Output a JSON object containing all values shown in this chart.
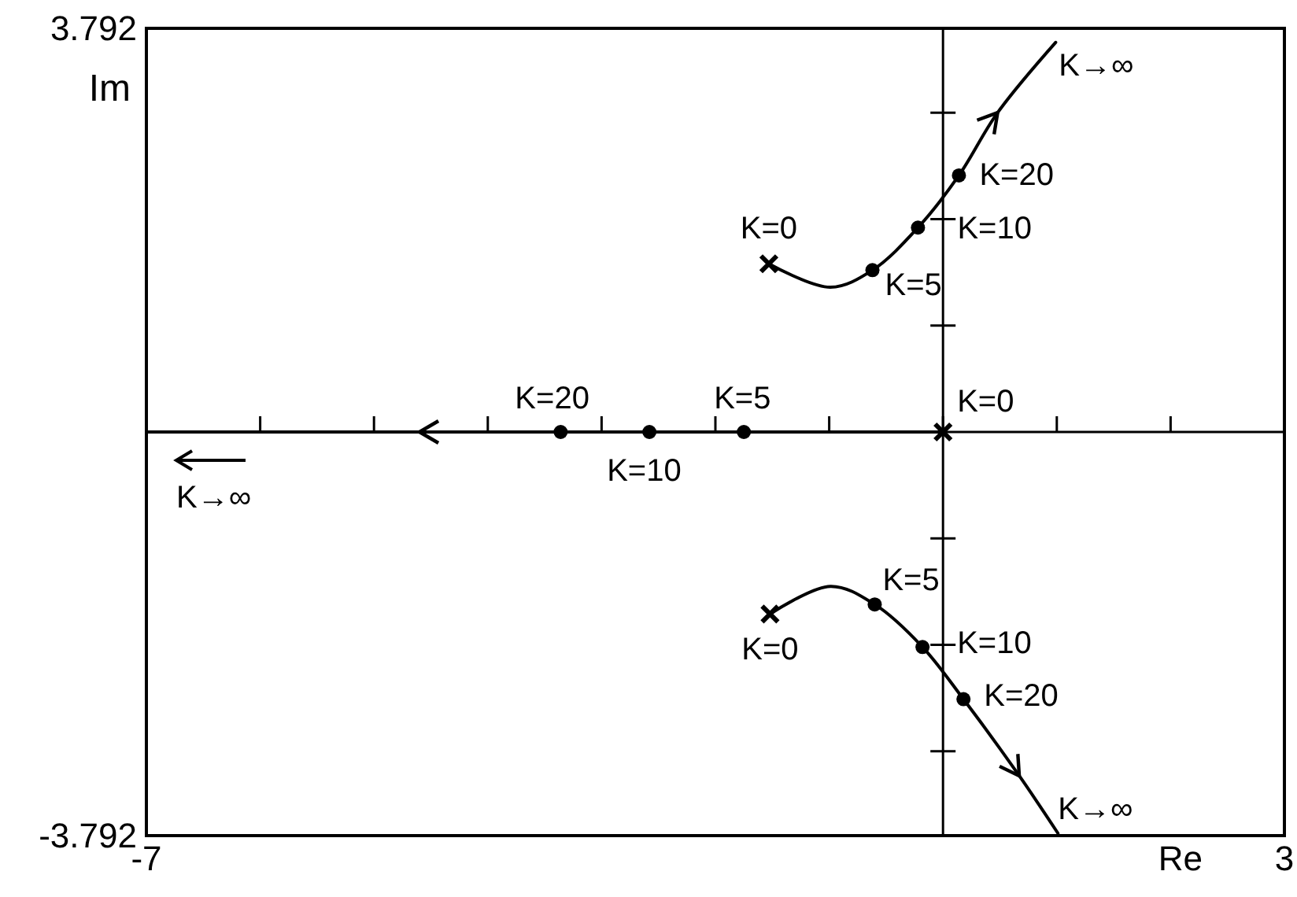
{
  "chart_data": {
    "type": "line",
    "xlabel": "Re",
    "ylabel": "Im",
    "xlim": [
      -7,
      3
    ],
    "ylim": [
      -3.792,
      3.792
    ],
    "xticks": [
      -7,
      {
        "value": -6,
        "label": null
      },
      {
        "value": -5,
        "label": null
      },
      {
        "value": -4,
        "label": null
      },
      {
        "value": -3,
        "label": null
      },
      {
        "value": -2,
        "label": null
      },
      {
        "value": -1,
        "label": null
      },
      {
        "value": 0,
        "label": null
      },
      {
        "value": 1,
        "label": null
      },
      {
        "value": 2,
        "label": null
      },
      3
    ],
    "yticks": [
      -3.792,
      {
        "value": -3,
        "label": null
      },
      {
        "value": -2,
        "label": null
      },
      {
        "value": -1,
        "label": null
      },
      {
        "value": 1,
        "label": null
      },
      {
        "value": 2,
        "label": null
      },
      {
        "value": 3,
        "label": null
      },
      3.792
    ],
    "series": [
      {
        "type": "line",
        "color": "#000000",
        "marker": "none",
        "x": [
          -1.53,
          -0.99,
          -0.62,
          -0.22,
          0.14,
          0.48,
          0.99
        ],
        "values": [
          1.58,
          1.36,
          1.52,
          1.92,
          2.41,
          3.0,
          3.66
        ]
      },
      {
        "type": "line",
        "color": "#000000",
        "marker": "none",
        "x": [
          -1.52,
          -0.99,
          -0.6,
          -0.18,
          0.18,
          0.67,
          1.01
        ],
        "values": [
          -1.71,
          -1.45,
          -1.62,
          -2.02,
          -2.51,
          -3.23,
          -3.77
        ]
      },
      {
        "type": "line",
        "color": "#000000",
        "marker": "none",
        "x": [
          0,
          -1.75,
          -2.58,
          -3.36,
          -4.6,
          -7
        ],
        "values": [
          0,
          0,
          0,
          0,
          0,
          0
        ]
      },
      {
        "type": "scatter",
        "color": "#000000",
        "marker": "circle",
        "x": [
          -0.62,
          -0.22,
          0.14,
          -0.6,
          -0.18,
          0.18,
          -1.75,
          -2.58,
          -3.36
        ],
        "values": [
          1.52,
          1.92,
          2.41,
          -1.62,
          -2.02,
          -2.51,
          0,
          0,
          0
        ]
      },
      {
        "type": "scatter",
        "color": "#000000",
        "marker": "cross",
        "x": [
          -1.53,
          -1.52,
          0
        ],
        "values": [
          1.58,
          -1.71,
          0
        ]
      }
    ],
    "annotations": [
      {
        "text": "K=0",
        "x": -1.53,
        "y": 1.58
      },
      {
        "text": "K=5",
        "x": -0.62,
        "y": 1.52
      },
      {
        "text": "K=10",
        "x": -0.22,
        "y": 1.92
      },
      {
        "text": "K=20",
        "x": 0.14,
        "y": 2.41
      },
      {
        "text": "K→∞",
        "x": 0.99,
        "y": 3.66
      },
      {
        "text": "K=20",
        "x": -3.36,
        "y": 0
      },
      {
        "text": "K=5",
        "x": -1.75,
        "y": 0
      },
      {
        "text": "K=0",
        "x": 0,
        "y": 0
      },
      {
        "text": "K=10",
        "x": -2.58,
        "y": 0
      },
      {
        "text": "K→∞",
        "x": -7,
        "y": 0
      },
      {
        "text": "K=5",
        "x": -0.6,
        "y": -1.62
      },
      {
        "text": "K=0",
        "x": -1.52,
        "y": -1.71
      },
      {
        "text": "K=10",
        "x": -0.18,
        "y": -2.02
      },
      {
        "text": "K=20",
        "x": 0.18,
        "y": -2.51
      },
      {
        "text": "K→∞",
        "x": 1.01,
        "y": -3.77
      }
    ]
  }
}
